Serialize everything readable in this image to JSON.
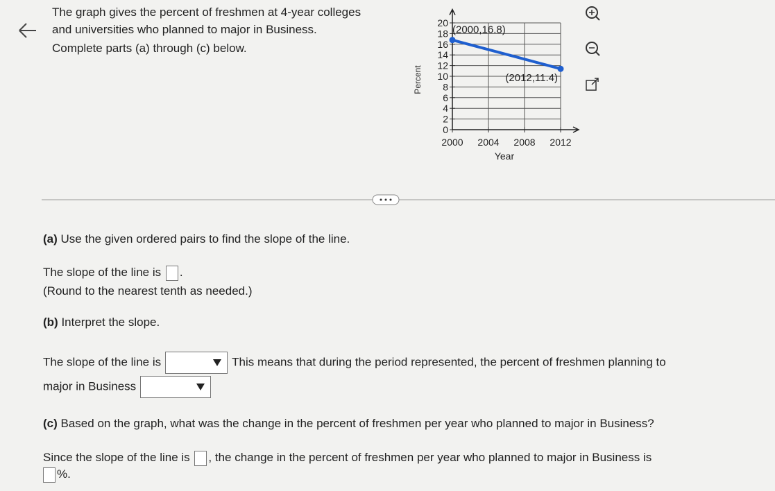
{
  "problem": {
    "lines": [
      "The graph gives the percent of freshmen at 4-year colleges",
      "and universities who planned to major in Business.",
      "Complete parts (a) through (c) below."
    ]
  },
  "chart_data": {
    "type": "line",
    "xlabel": "Year",
    "ylabel": "Percent",
    "xlim": [
      2000,
      2014
    ],
    "xticks": [
      2000,
      2004,
      2008,
      2012
    ],
    "ylim": [
      0,
      22
    ],
    "yticks": [
      0,
      2,
      4,
      6,
      8,
      10,
      12,
      14,
      16,
      18,
      20
    ],
    "grid": true,
    "series": [
      {
        "name": "Business",
        "color": "#1f5fcf",
        "x": [
          2000,
          2012
        ],
        "values": [
          16.8,
          11.4
        ]
      }
    ],
    "annotations": [
      "(2000,16.8)",
      "(2012,11.4)"
    ]
  },
  "parts": {
    "a": {
      "label": "(a)",
      "question": "Use the given ordered pairs to find the slope of the line.",
      "answer_prefix": "The slope of the line is",
      "answer_suffix": ".",
      "note": "(Round to the nearest tenth as needed.)"
    },
    "b": {
      "label": "(b)",
      "question": "Interpret the slope.",
      "answer_prefix": "The slope of the line is",
      "answer_middle": "This means that during the period represented, the percent of freshmen planning to",
      "answer_line2": "major in Business"
    },
    "c": {
      "label": "(c)",
      "question": "Based on the graph, what was the change in the percent of freshmen per year who planned to major in Business?",
      "answer_prefix": "Since the slope of the line is",
      "answer_middle": ", the change in the percent of freshmen per year who planned to major in Business is",
      "answer_suffix": "%."
    }
  }
}
